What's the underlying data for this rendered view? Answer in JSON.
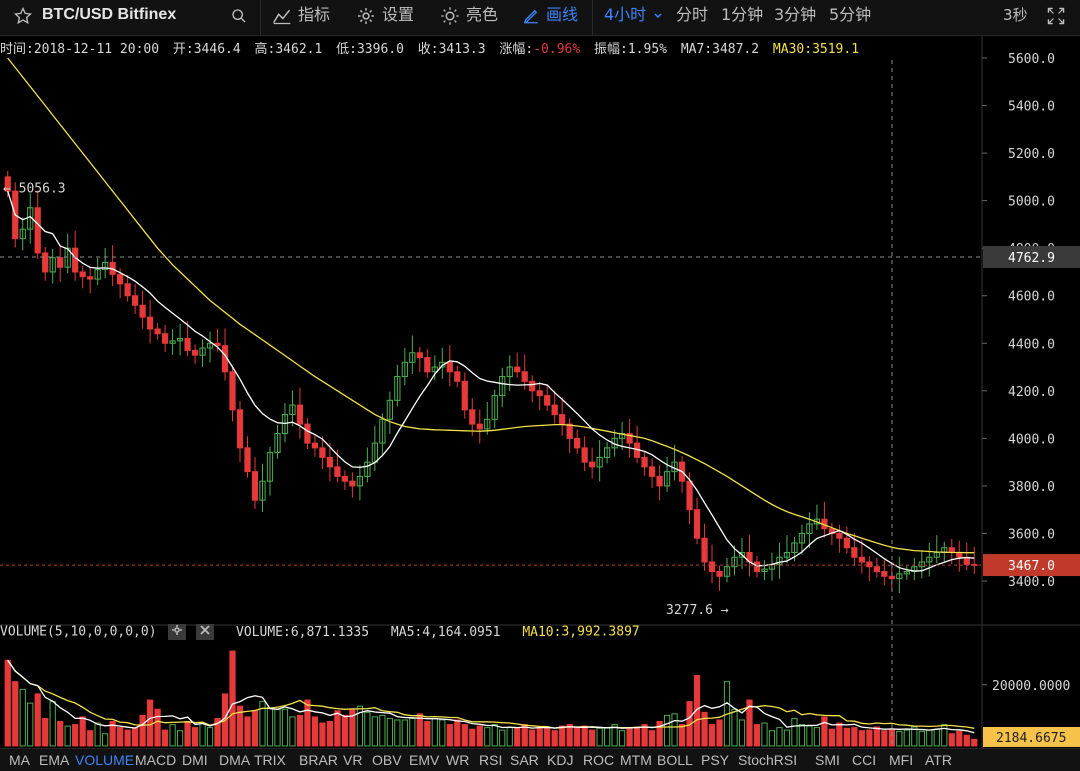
{
  "toolbar": {
    "star_icon": "star-icon",
    "symbol": "BTC/USD Bitfinex",
    "search_icon": "search-icon",
    "indicators_label": "指标",
    "settings_label": "设置",
    "theme_label": "亮色",
    "draw_label": "画线",
    "interval_selected": "4小时",
    "intervals": [
      "分时",
      "1分钟",
      "3分钟",
      "5分钟"
    ],
    "refresh_label": "3秒",
    "fullscreen_icon": "fullscreen-icon"
  },
  "info": {
    "time": "时间:2018-12-11 20:00",
    "open": "开:3446.4",
    "high": "高:3462.1",
    "low": "低:3396.0",
    "close": "收:3413.3",
    "change_label": "涨幅:",
    "change_value": "-0.96%",
    "amplitude": "振幅:1.95%",
    "ma7": "MA7:3487.2",
    "ma30_label": "MA30:",
    "ma30_value": "3519.1"
  },
  "volume_info": {
    "title": "VOLUME(5,10,0,0,0,0)",
    "settings_icon": "gear-icon",
    "close_icon": "close-icon",
    "volume": "VOLUME:6,871.1335",
    "ma5": "MA5:4,164.0951",
    "ma10_label": "MA10:",
    "ma10_value": "3,992.3897"
  },
  "indicators": [
    "MA",
    "EMA",
    "VOLUME",
    "MACD",
    "DMI",
    "DMA",
    "TRIX",
    "BRAR",
    "VR",
    "OBV",
    "EMV",
    "WR",
    "RSI",
    "SAR",
    "KDJ",
    "ROC",
    "MTM",
    "BOLL",
    "PSY",
    "StochRSI",
    "SMI",
    "CCI",
    "MFI",
    "ATR"
  ],
  "active_indicator": "VOLUME",
  "colors": {
    "up": "#4caf50",
    "down": "#e5393a",
    "ma_fast": "#ffffff",
    "ma_slow": "#f2e14a",
    "accent": "#3e83f8",
    "badge_price": "#c0392b",
    "badge_crosshair": "#3a3a3a",
    "badge_volume": "#f6c24a"
  },
  "chart_data": {
    "type": "candlestick",
    "price_axis_ticks": [
      "5600.0",
      "5400.0",
      "5200.0",
      "5000.0",
      "4800.0",
      "4600.0",
      "4400.0",
      "4200.0",
      "4000.0",
      "3800.0",
      "3600.0",
      "3400.0"
    ],
    "volume_axis_ticks": [
      "20000.0000"
    ],
    "ylim": [
      3250,
      5680
    ],
    "volume_ylim": [
      0,
      32000
    ],
    "last_price": "3467.0",
    "crosshair_price": "4762.9",
    "high_label": "5056.3",
    "low_label": "3277.6",
    "current_volume": "2184.6675",
    "close": [
      5040,
      4840,
      4880,
      4970,
      4780,
      4700,
      4760,
      4720,
      4800,
      4700,
      4680,
      4670,
      4710,
      4740,
      4690,
      4650,
      4600,
      4560,
      4510,
      4460,
      4440,
      4400,
      4410,
      4420,
      4370,
      4350,
      4380,
      4400,
      4390,
      4280,
      4120,
      3960,
      3860,
      3740,
      3820,
      3940,
      4020,
      4100,
      4140,
      4060,
      3980,
      3960,
      3920,
      3880,
      3840,
      3820,
      3800,
      3840,
      3900,
      3980,
      4080,
      4160,
      4260,
      4320,
      4360,
      4340,
      4280,
      4300,
      4320,
      4280,
      4240,
      4120,
      4060,
      4040,
      4080,
      4180,
      4260,
      4300,
      4280,
      4240,
      4200,
      4180,
      4140,
      4100,
      4060,
      4000,
      3960,
      3900,
      3880,
      3920,
      3960,
      4000,
      4020,
      3980,
      3920,
      3880,
      3840,
      3800,
      3860,
      3900,
      3820,
      3700,
      3580,
      3480,
      3440,
      3420,
      3460,
      3500,
      3520,
      3480,
      3440,
      3450,
      3470,
      3500,
      3520,
      3560,
      3600,
      3640,
      3660,
      3620,
      3600,
      3580,
      3540,
      3500,
      3480,
      3460,
      3440,
      3420,
      3410,
      3430,
      3440,
      3460,
      3480,
      3500,
      3520,
      3540,
      3520,
      3500,
      3470,
      3467
    ],
    "ma7": [
      5040,
      4940,
      4920,
      4933,
      4902,
      4870,
      4861,
      4809,
      4797,
      4761,
      4737,
      4719,
      4716,
      4717,
      4713,
      4697,
      4680,
      4661,
      4637,
      4611,
      4577,
      4551,
      4526,
      4502,
      4477,
      4450,
      4431,
      4407,
      4384,
      4350,
      4300,
      4249,
      4191,
      4139,
      4104,
      4081,
      4066,
      4063,
      4068,
      4053,
      4031,
      4016,
      3997,
      3964,
      3931,
      3901,
      3880,
      3878,
      3883,
      3898,
      3928,
      3966,
      4022,
      4073,
      4126,
      4177,
      4222,
      4270,
      4307,
      4326,
      4322,
      4303,
      4276,
      4252,
      4241,
      4236,
      4230,
      4226,
      4224,
      4225,
      4226,
      4231,
      4224,
      4192,
      4164,
      4134,
      4104,
      4072,
      4040,
      4014,
      3993,
      3976,
      3966,
      3960,
      3953,
      3945,
      3931,
      3909,
      3889,
      3874,
      3860,
      3826,
      3782,
      3729,
      3678,
      3625,
      3573,
      3536,
      3510,
      3480,
      3464,
      3465,
      3470,
      3479,
      3484,
      3501,
      3522,
      3552,
      3579,
      3590,
      3602,
      3612,
      3596,
      3576,
      3559,
      3538,
      3516,
      3494,
      3474,
      3456,
      3447,
      3442,
      3443,
      3455,
      3468,
      3479,
      3490,
      3496,
      3499,
      3496
    ],
    "ma30": [
      5600,
      5560,
      5520,
      5480,
      5440,
      5400,
      5360,
      5320,
      5280,
      5240,
      5200,
      5160,
      5120,
      5080,
      5040,
      5000,
      4960,
      4920,
      4880,
      4840,
      4800,
      4765,
      4730,
      4700,
      4670,
      4640,
      4610,
      4580,
      4555,
      4530,
      4505,
      4480,
      4458,
      4436,
      4414,
      4392,
      4370,
      4348,
      4326,
      4304,
      4282,
      4260,
      4240,
      4220,
      4200,
      4180,
      4160,
      4140,
      4120,
      4100,
      4085,
      4070,
      4060,
      4050,
      4045,
      4040,
      4038,
      4036,
      4035,
      4034,
      4033,
      4032,
      4031,
      4030,
      4032,
      4034,
      4038,
      4042,
      4046,
      4050,
      4052,
      4054,
      4056,
      4058,
      4058,
      4056,
      4052,
      4048,
      4042,
      4036,
      4030,
      4024,
      4018,
      4012,
      4006,
      4000,
      3990,
      3978,
      3966,
      3954,
      3940,
      3926,
      3910,
      3894,
      3876,
      3858,
      3840,
      3820,
      3800,
      3780,
      3760,
      3740,
      3722,
      3706,
      3692,
      3680,
      3670,
      3660,
      3648,
      3636,
      3624,
      3612,
      3600,
      3590,
      3580,
      3570,
      3560,
      3550,
      3542,
      3536,
      3532,
      3528,
      3526,
      3524,
      3522,
      3521,
      3520,
      3520,
      3519,
      3519
    ],
    "volume": [
      28000,
      21000,
      18500,
      14000,
      17000,
      9000,
      14500,
      8000,
      6500,
      7000,
      9500,
      5000,
      7500,
      4000,
      8000,
      6000,
      5200,
      6000,
      10000,
      15000,
      12000,
      5200,
      7000,
      5000,
      8000,
      6000,
      7500,
      6000,
      9000,
      17000,
      31000,
      13000,
      9500,
      11500,
      14500,
      12500,
      12000,
      12000,
      9500,
      10000,
      15000,
      9500,
      7500,
      8000,
      11500,
      10000,
      12000,
      13000,
      11000,
      9500,
      10000,
      9000,
      8500,
      8500,
      9000,
      10500,
      8000,
      9000,
      8500,
      7000,
      8500,
      7000,
      5500,
      6500,
      6000,
      7000,
      5200,
      6000,
      5800,
      7000,
      5200,
      6000,
      6200,
      5000,
      6500,
      7000,
      6000,
      6500,
      5200,
      5800,
      6000,
      7000,
      5000,
      5800,
      6200,
      7000,
      5000,
      8000,
      10000,
      10500,
      7000,
      14500,
      23000,
      11000,
      7000,
      8500,
      21000,
      12000,
      8500,
      15000,
      7000,
      7500,
      5000,
      6000,
      5200,
      9000,
      7000,
      6500,
      6000,
      9500,
      5500,
      7500,
      5800,
      6000,
      5000,
      5200,
      6200,
      5000,
      5500,
      4800,
      5200,
      6200,
      4800,
      5200,
      5500,
      7000,
      4000,
      4800,
      3500,
      2184
    ],
    "vol_ma5": [
      28000,
      24500,
      22500,
      20375,
      19700,
      15900,
      14600,
      12500,
      11000,
      9000,
      9100,
      8400,
      7100,
      6600,
      6800,
      6500,
      6140,
      5840,
      7040,
      9040,
      9640,
      9680,
      9840,
      8880,
      9440,
      7040,
      7360,
      6540,
      7300,
      9100,
      13700,
      14500,
      15800,
      16400,
      15900,
      12200,
      11980,
      12780,
      12100,
      11120,
      11720,
      11160,
      10800,
      10000,
      10700,
      9600,
      9800,
      10900,
      11520,
      11100,
      10900,
      10700,
      9600,
      9300,
      9200,
      9100,
      8900,
      8900,
      8800,
      8600,
      8200,
      8000,
      7300,
      7100,
      6700,
      6700,
      6040,
      6140,
      6000,
      6200,
      5840,
      6000,
      6040,
      5880,
      6180,
      6240,
      6140,
      6100,
      6260,
      6100,
      5900,
      6100,
      5800,
      5920,
      6000,
      6200,
      6000,
      6400,
      7240,
      8300,
      8100,
      9200,
      12000,
      13200,
      12300,
      12800,
      14100,
      12300,
      10800,
      13000,
      12700,
      10600,
      9600,
      8700,
      6140,
      6540,
      6640,
      6740,
      6740,
      7700,
      6900,
      7000,
      6900,
      7080,
      6160,
      5900,
      5700,
      5480,
      5580,
      5440,
      5540,
      5440,
      5400,
      5200,
      5500,
      5740,
      5340,
      5300,
      4960,
      4297
    ],
    "vol_ma10": [
      28000,
      24500,
      22500,
      20375,
      19700,
      17916,
      17000,
      15875,
      14833,
      14050,
      12650,
      11000,
      9900,
      8800,
      8700,
      7800,
      7600,
      6900,
      6800,
      6900,
      8100,
      7600,
      7700,
      7800,
      7900,
      7600,
      7800,
      6800,
      7400,
      8300,
      10500,
      11000,
      11300,
      11600,
      12300,
      12300,
      12700,
      13200,
      13900,
      14900,
      13400,
      13200,
      13000,
      12500,
      12200,
      12000,
      12100,
      12100,
      12200,
      12500,
      11500,
      11200,
      11000,
      10200,
      9900,
      9900,
      9500,
      9600,
      9500,
      9300,
      9300,
      8500,
      7900,
      7900,
      7900,
      7800,
      7600,
      7500,
      7200,
      6800,
      6600,
      6400,
      6300,
      5800,
      6000,
      6300,
      6200,
      6300,
      6100,
      6000,
      6000,
      6100,
      6000,
      6000,
      6100,
      6200,
      6100,
      6200,
      6200,
      6200,
      6300,
      6900,
      8600,
      9000,
      9100,
      9400,
      10400,
      11200,
      12000,
      12800,
      12800,
      13200,
      12900,
      12400,
      11200,
      11700,
      10200,
      10600,
      10200,
      10000,
      9900,
      9900,
      8200,
      8100,
      7400,
      7200,
      7500,
      7300,
      7400,
      6900,
      6800,
      6500,
      6500,
      6400,
      6500,
      6700,
      6700,
      6400,
      6200,
      5790
    ]
  }
}
